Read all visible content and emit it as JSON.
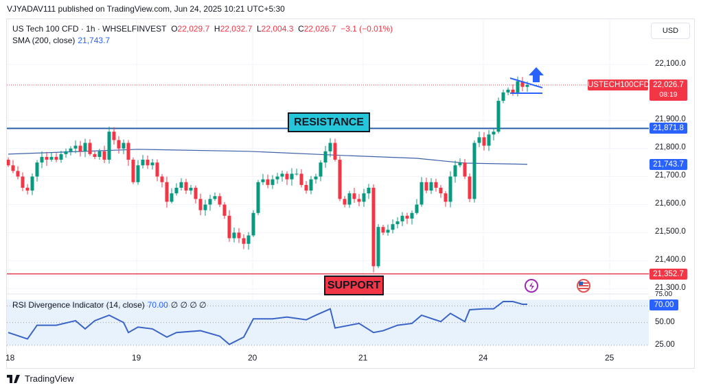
{
  "header": {
    "published": "VJYADAV111 published on TradingView.com, Jun 24, 2025 10:21 UTC+5:30"
  },
  "legend": {
    "symbol": "US Tech 100 CFD · 1h · WHSELFINVEST",
    "o_label": "O",
    "o": "22,029.7",
    "h_label": "H",
    "h": "22,032.7",
    "l_label": "L",
    "l": "22,004.3",
    "c_label": "C",
    "c": "22,026.7",
    "change": "−3.1 (−0.01%)",
    "sma_label": "SMA (200, close)",
    "sma_value": "21,743.7"
  },
  "currency": "USD",
  "price_axis": {
    "ticks": [
      "22,100.0",
      "21,900.0",
      "21,800.0",
      "21,700.0",
      "21,600.0",
      "21,500.0",
      "21,400.0",
      "21,300.0"
    ]
  },
  "tags": {
    "symbol": "USTECH100CFD",
    "last": "22,026.7",
    "countdown": "08:19",
    "resistance": "21,871.8",
    "sma": "21,743.7",
    "support": "21,352.7",
    "rsi": "70.00"
  },
  "annotations": {
    "resistance": "RESISTANCE",
    "support": "SUPPORT"
  },
  "rsi": {
    "label": "RSI Divergence Indicator (14, close)",
    "value": "70.00",
    "extras": "∅ ∅ ∅ ∅",
    "ticks": [
      "75.00",
      "50.00",
      "25.00"
    ]
  },
  "time_axis": [
    "18",
    "19",
    "20",
    "21",
    "24",
    "25"
  ],
  "brand": "TradingView",
  "colors": {
    "up": "#089981",
    "down": "#f23645",
    "sma": "#2962ff",
    "resistance": "#2a5ea8",
    "support": "#e03e4e",
    "rsi": "#3a63c7"
  },
  "chart_data": {
    "type": "candlestick",
    "price_range": [
      21270,
      22170
    ],
    "resistance": 21871.8,
    "support": 21352.7,
    "closes": [
      21740,
      21720,
      21700,
      21660,
      21650,
      21700,
      21750,
      21770,
      21760,
      21770,
      21760,
      21780,
      21790,
      21800,
      21810,
      21790,
      21820,
      21780,
      21770,
      21790,
      21760,
      21860,
      21830,
      21800,
      21820,
      21760,
      21680,
      21740,
      21760,
      21740,
      21750,
      21700,
      21680,
      21610,
      21640,
      21660,
      21680,
      21650,
      21660,
      21620,
      21580,
      21600,
      21620,
      21630,
      21600,
      21560,
      21480,
      21500,
      21480,
      21460,
      21490,
      21570,
      21680,
      21690,
      21670,
      21690,
      21700,
      21710,
      21690,
      21710,
      21710,
      21670,
      21650,
      21690,
      21700,
      21750,
      21790,
      21820,
      21760,
      21620,
      21600,
      21640,
      21620,
      21610,
      21640,
      21660,
      21380,
      21520,
      21500,
      21510,
      21530,
      21540,
      21560,
      21550,
      21570,
      21600,
      21680,
      21650,
      21680,
      21660,
      21640,
      21610,
      21700,
      21740,
      21750,
      21700,
      21620,
      21820,
      21840,
      21810,
      21850,
      21860,
      21970,
      22000,
      22010,
      22000,
      22040,
      22020,
      22026.7
    ],
    "sma": [
      [
        0,
        21780
      ],
      [
        27,
        21797
      ],
      [
        50,
        21790
      ],
      [
        70,
        21775
      ],
      [
        85,
        21765
      ],
      [
        95,
        21748
      ],
      [
        108,
        21743.7
      ]
    ],
    "rsi": [
      [
        0,
        39
      ],
      [
        4,
        32
      ],
      [
        6,
        47
      ],
      [
        10,
        47
      ],
      [
        14,
        52
      ],
      [
        16,
        43
      ],
      [
        18,
        52
      ],
      [
        21,
        58
      ],
      [
        24,
        50
      ],
      [
        25,
        39
      ],
      [
        27,
        45
      ],
      [
        30,
        43
      ],
      [
        33,
        34
      ],
      [
        35,
        39
      ],
      [
        40,
        41
      ],
      [
        44,
        35
      ],
      [
        46,
        26
      ],
      [
        49,
        34
      ],
      [
        51,
        54
      ],
      [
        55,
        54
      ],
      [
        58,
        56
      ],
      [
        62,
        53
      ],
      [
        64,
        58
      ],
      [
        67,
        65
      ],
      [
        68,
        44
      ],
      [
        73,
        49
      ],
      [
        76,
        39
      ],
      [
        78,
        41
      ],
      [
        81,
        47
      ],
      [
        84,
        49
      ],
      [
        86,
        58
      ],
      [
        90,
        51
      ],
      [
        92,
        60
      ],
      [
        95,
        51
      ],
      [
        96,
        64
      ],
      [
        99,
        65
      ],
      [
        101,
        65
      ],
      [
        103,
        73
      ],
      [
        105,
        73
      ],
      [
        107,
        70
      ],
      [
        108,
        70
      ]
    ]
  }
}
